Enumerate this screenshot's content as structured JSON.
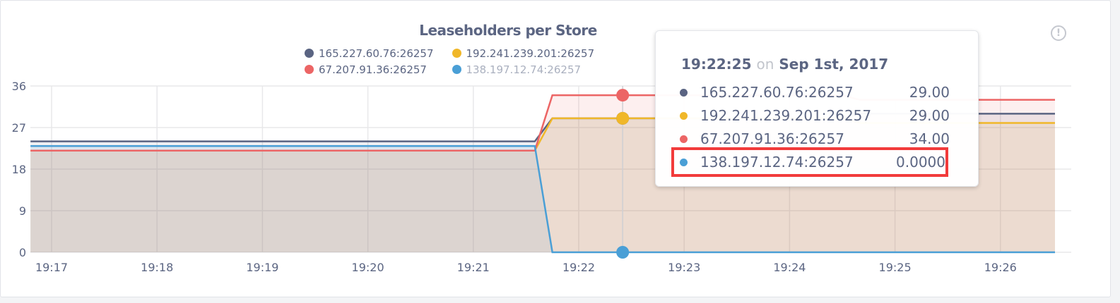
{
  "chart_data": {
    "type": "area",
    "title": "Leaseholders per Store",
    "xlabel": "",
    "ylabel": "",
    "ylim": [
      0,
      36
    ],
    "y_ticks": [
      "0",
      "9",
      "18",
      "27",
      "36"
    ],
    "x_ticks": [
      "19:17",
      "19:18",
      "19:19",
      "19:20",
      "19:21",
      "19:22",
      "19:23",
      "19:24",
      "19:25",
      "19:26"
    ],
    "x_range": [
      "19:16:48",
      "19:26:38"
    ],
    "grid": true,
    "legend_position": "top",
    "x": [
      "19:16:48",
      "19:21:35",
      "19:21:45",
      "19:22:25",
      "19:24:30",
      "19:24:40",
      "19:26:38"
    ],
    "series": [
      {
        "name": "165.227.60.76:26257",
        "color": "#5a6482",
        "values": [
          24,
          24,
          29,
          29,
          29,
          30,
          30
        ],
        "legend_active": true
      },
      {
        "name": "192.241.239.201:26257",
        "color": "#f0b729",
        "values": [
          22,
          22,
          29,
          29,
          29,
          28,
          28
        ],
        "legend_active": true
      },
      {
        "name": "67.207.91.36:26257",
        "color": "#ec6565",
        "values": [
          22,
          22,
          34,
          34,
          34,
          33,
          33
        ],
        "legend_active": true
      },
      {
        "name": "138.197.12.74:26257",
        "color": "#4a9fd6",
        "values": [
          23,
          23,
          0,
          0,
          0,
          0,
          0
        ],
        "legend_active": false
      }
    ]
  },
  "tooltip": {
    "time": "19:22:25",
    "on": "on",
    "date": "Sep 1st, 2017",
    "hover_x": "19:22:25",
    "rows": [
      {
        "label": "165.227.60.76:26257",
        "value": "29.00",
        "color": "#5a6482"
      },
      {
        "label": "192.241.239.201:26257",
        "value": "29.00",
        "color": "#f0b729"
      },
      {
        "label": "67.207.91.36:26257",
        "value": "34.00",
        "color": "#ec6565"
      },
      {
        "label": "138.197.12.74:26257",
        "value": "0.0000",
        "color": "#4a9fd6",
        "highlighted": true
      }
    ]
  },
  "info_icon": "info-icon",
  "info_glyph": "!"
}
